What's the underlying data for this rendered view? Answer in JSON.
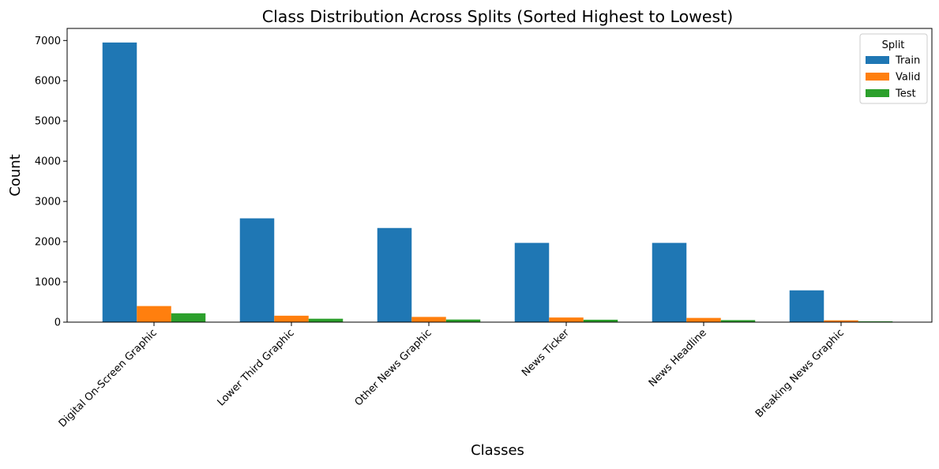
{
  "chart_data": {
    "type": "bar",
    "title": "Class Distribution Across Splits (Sorted Highest to Lowest)",
    "xlabel": "Classes",
    "ylabel": "Count",
    "ylim": [
      0,
      7300
    ],
    "yticks": [
      0,
      1000,
      2000,
      3000,
      4000,
      5000,
      6000,
      7000
    ],
    "categories": [
      "Digital On-Screen Graphic",
      "Lower Third Graphic",
      "Other News Graphic",
      "News Ticker",
      "News Headline",
      "Breaking News Graphic"
    ],
    "series": [
      {
        "name": "Train",
        "color": "#1f77b4",
        "values": [
          6950,
          2580,
          2340,
          1970,
          1970,
          790
        ]
      },
      {
        "name": "Valid",
        "color": "#ff7f0e",
        "values": [
          400,
          160,
          130,
          115,
          105,
          45
        ]
      },
      {
        "name": "Test",
        "color": "#2ca02c",
        "values": [
          220,
          85,
          65,
          60,
          50,
          20
        ]
      }
    ],
    "legend": {
      "title": "Split",
      "position": "top-right"
    },
    "grid": false
  }
}
